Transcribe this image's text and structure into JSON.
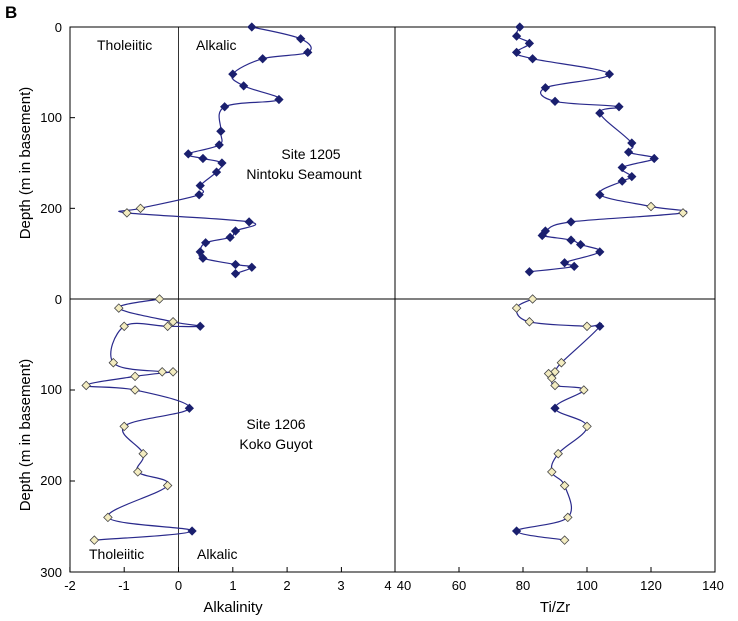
{
  "figure": {
    "panel_letter": "B",
    "colors": {
      "series_line": "#2a2a8c",
      "filled_marker": "#1a1f6e",
      "open_marker_fill": "#f3ecc0",
      "open_marker_stroke": "#444444",
      "frame": "#000000"
    }
  },
  "chart_data": [
    {
      "type": "line",
      "panel": "top-left",
      "ylabel": "Depth (m in basement)",
      "xlim": [
        -2,
        4
      ],
      "ylim": [
        300,
        0
      ],
      "xticks": [
        "-2",
        "-1",
        "0",
        "1",
        "2",
        "3",
        "4"
      ],
      "yticks": [
        "0",
        "100",
        "200",
        "300"
      ],
      "annotations": {
        "left_label": "Tholeiitic",
        "right_label": "Alkalic",
        "site": "Site 1205",
        "site_name": "Nintoku Seamount"
      },
      "points": [
        {
          "x": 1.35,
          "y": 0,
          "open": false
        },
        {
          "x": 2.25,
          "y": 13,
          "open": false
        },
        {
          "x": 2.38,
          "y": 28,
          "open": false
        },
        {
          "x": 1.55,
          "y": 35,
          "open": false
        },
        {
          "x": 1.0,
          "y": 52,
          "open": false
        },
        {
          "x": 1.2,
          "y": 65,
          "open": false
        },
        {
          "x": 1.85,
          "y": 80,
          "open": false
        },
        {
          "x": 0.85,
          "y": 88,
          "open": false
        },
        {
          "x": 0.78,
          "y": 115,
          "open": false
        },
        {
          "x": 0.75,
          "y": 130,
          "open": false
        },
        {
          "x": 0.18,
          "y": 140,
          "open": false
        },
        {
          "x": 0.45,
          "y": 145,
          "open": false
        },
        {
          "x": 0.8,
          "y": 150,
          "open": false
        },
        {
          "x": 0.7,
          "y": 160,
          "open": false
        },
        {
          "x": 0.4,
          "y": 175,
          "open": false
        },
        {
          "x": 0.38,
          "y": 185,
          "open": false
        },
        {
          "x": -0.7,
          "y": 200,
          "open": true
        },
        {
          "x": -0.95,
          "y": 205,
          "open": true
        },
        {
          "x": 1.3,
          "y": 215,
          "open": false
        },
        {
          "x": 1.05,
          "y": 225,
          "open": false
        },
        {
          "x": 0.95,
          "y": 232,
          "open": false
        },
        {
          "x": 0.5,
          "y": 238,
          "open": false
        },
        {
          "x": 0.4,
          "y": 248,
          "open": false
        },
        {
          "x": 0.45,
          "y": 255,
          "open": false
        },
        {
          "x": 1.05,
          "y": 262,
          "open": false
        },
        {
          "x": 1.35,
          "y": 265,
          "open": false
        },
        {
          "x": 1.05,
          "y": 272,
          "open": false
        }
      ]
    },
    {
      "type": "line",
      "panel": "top-right",
      "xlim": [
        40,
        140
      ],
      "ylim": [
        300,
        0
      ],
      "points": [
        {
          "x": 79,
          "y": 0,
          "open": false
        },
        {
          "x": 78,
          "y": 10,
          "open": false
        },
        {
          "x": 82,
          "y": 18,
          "open": false
        },
        {
          "x": 78,
          "y": 28,
          "open": false
        },
        {
          "x": 83,
          "y": 35,
          "open": false
        },
        {
          "x": 107,
          "y": 52,
          "open": false
        },
        {
          "x": 87,
          "y": 67,
          "open": false
        },
        {
          "x": 90,
          "y": 82,
          "open": false
        },
        {
          "x": 110,
          "y": 88,
          "open": false
        },
        {
          "x": 104,
          "y": 95,
          "open": false
        },
        {
          "x": 114,
          "y": 128,
          "open": false
        },
        {
          "x": 113,
          "y": 138,
          "open": false
        },
        {
          "x": 121,
          "y": 145,
          "open": false
        },
        {
          "x": 111,
          "y": 155,
          "open": false
        },
        {
          "x": 114,
          "y": 165,
          "open": false
        },
        {
          "x": 111,
          "y": 170,
          "open": false
        },
        {
          "x": 104,
          "y": 185,
          "open": false
        },
        {
          "x": 120,
          "y": 198,
          "open": true
        },
        {
          "x": 130,
          "y": 205,
          "open": true
        },
        {
          "x": 95,
          "y": 215,
          "open": false
        },
        {
          "x": 87,
          "y": 225,
          "open": false
        },
        {
          "x": 86,
          "y": 230,
          "open": false
        },
        {
          "x": 95,
          "y": 235,
          "open": false
        },
        {
          "x": 98,
          "y": 240,
          "open": false
        },
        {
          "x": 104,
          "y": 248,
          "open": false
        },
        {
          "x": 93,
          "y": 260,
          "open": false
        },
        {
          "x": 96,
          "y": 264,
          "open": false
        },
        {
          "x": 82,
          "y": 270,
          "open": false
        }
      ]
    },
    {
      "type": "line",
      "panel": "bottom-left",
      "xlabel": "Alkalinity",
      "ylabel": "Depth (m in basement)",
      "xlim": [
        -2,
        4
      ],
      "ylim": [
        300,
        0
      ],
      "xticks": [
        "-2",
        "-1",
        "0",
        "1",
        "2",
        "3",
        "4"
      ],
      "yticks": [
        "0",
        "100",
        "200",
        "300"
      ],
      "annotations": {
        "left_label": "Tholeiitic",
        "right_label": "Alkalic",
        "site": "Site 1206",
        "site_name": "Koko Guyot"
      },
      "points": [
        {
          "x": -0.35,
          "y": 0,
          "open": true
        },
        {
          "x": -1.1,
          "y": 10,
          "open": true
        },
        {
          "x": -0.1,
          "y": 25,
          "open": true
        },
        {
          "x": 0.4,
          "y": 30,
          "open": false
        },
        {
          "x": -0.2,
          "y": 30,
          "open": true
        },
        {
          "x": -1.0,
          "y": 30,
          "open": true
        },
        {
          "x": -1.2,
          "y": 70,
          "open": true
        },
        {
          "x": -0.3,
          "y": 80,
          "open": true
        },
        {
          "x": -0.1,
          "y": 80,
          "open": true
        },
        {
          "x": -0.8,
          "y": 85,
          "open": true
        },
        {
          "x": -1.7,
          "y": 95,
          "open": true
        },
        {
          "x": -0.8,
          "y": 100,
          "open": true
        },
        {
          "x": 0.2,
          "y": 120,
          "open": false
        },
        {
          "x": -1.0,
          "y": 140,
          "open": true
        },
        {
          "x": -0.65,
          "y": 170,
          "open": true
        },
        {
          "x": -0.75,
          "y": 190,
          "open": true
        },
        {
          "x": -0.2,
          "y": 205,
          "open": true
        },
        {
          "x": -1.3,
          "y": 240,
          "open": true
        },
        {
          "x": 0.25,
          "y": 255,
          "open": false
        },
        {
          "x": -1.55,
          "y": 265,
          "open": true
        }
      ]
    },
    {
      "type": "line",
      "panel": "bottom-right",
      "xlabel": "Ti/Zr",
      "xlim": [
        40,
        140
      ],
      "ylim": [
        300,
        0
      ],
      "xticks": [
        "40",
        "60",
        "80",
        "100",
        "120",
        "140"
      ],
      "points": [
        {
          "x": 83,
          "y": 0,
          "open": true
        },
        {
          "x": 78,
          "y": 10,
          "open": true
        },
        {
          "x": 82,
          "y": 25,
          "open": true
        },
        {
          "x": 100,
          "y": 30,
          "open": true
        },
        {
          "x": 104,
          "y": 30,
          "open": false
        },
        {
          "x": 92,
          "y": 70,
          "open": true
        },
        {
          "x": 90,
          "y": 80,
          "open": true
        },
        {
          "x": 88,
          "y": 82,
          "open": true
        },
        {
          "x": 89,
          "y": 87,
          "open": true
        },
        {
          "x": 90,
          "y": 95,
          "open": true
        },
        {
          "x": 99,
          "y": 100,
          "open": true
        },
        {
          "x": 90,
          "y": 120,
          "open": false
        },
        {
          "x": 100,
          "y": 140,
          "open": true
        },
        {
          "x": 91,
          "y": 170,
          "open": true
        },
        {
          "x": 89,
          "y": 190,
          "open": true
        },
        {
          "x": 93,
          "y": 205,
          "open": true
        },
        {
          "x": 94,
          "y": 240,
          "open": true
        },
        {
          "x": 78,
          "y": 255,
          "open": false
        },
        {
          "x": 93,
          "y": 265,
          "open": true
        }
      ]
    }
  ]
}
